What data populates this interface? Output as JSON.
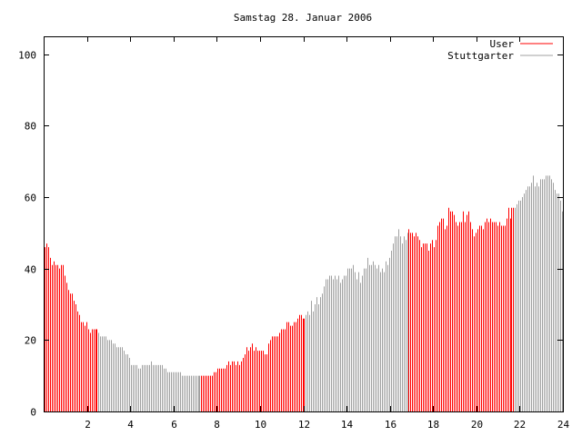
{
  "chart_data": {
    "type": "bar",
    "title": "Samstag 28. Januar 2006",
    "xlabel": "",
    "ylabel": "",
    "xlim": [
      0,
      24
    ],
    "ylim": [
      0,
      105
    ],
    "xticks": [
      2,
      4,
      6,
      8,
      10,
      12,
      14,
      16,
      18,
      20,
      22,
      24
    ],
    "yticks": [
      0,
      20,
      40,
      60,
      80,
      100
    ],
    "interval_minutes": 5,
    "legend_position": "top-right",
    "series": [
      {
        "name": "User",
        "color": "#ff0000"
      },
      {
        "name": "Stuttgarter",
        "color": "#a0a0a0"
      }
    ],
    "user_intervals_hours": [
      [
        0,
        2.5
      ],
      [
        7.17,
        12.08
      ],
      [
        16.83,
        21.75
      ]
    ],
    "values": [
      46,
      47,
      46,
      43,
      41,
      42,
      41,
      41,
      40,
      41,
      41,
      38,
      36,
      34,
      33,
      33,
      31,
      30,
      28,
      27,
      25,
      25,
      24,
      25,
      23,
      22,
      23,
      23,
      23,
      23,
      22,
      21,
      21,
      21,
      21,
      20,
      20,
      20,
      19,
      19,
      18,
      18,
      18,
      18,
      17,
      16,
      16,
      15,
      13,
      13,
      13,
      13,
      12,
      12,
      13,
      13,
      13,
      13,
      13,
      14,
      13,
      13,
      13,
      13,
      13,
      13,
      12,
      12,
      11,
      11,
      11,
      11,
      11,
      11,
      11,
      11,
      10,
      10,
      10,
      10,
      10,
      10,
      10,
      10,
      10,
      10,
      10,
      10,
      10,
      10,
      10,
      10,
      10,
      10,
      11,
      11,
      12,
      12,
      12,
      12,
      12,
      13,
      14,
      13,
      14,
      14,
      13,
      14,
      13,
      14,
      15,
      16,
      18,
      17,
      18,
      19,
      17,
      18,
      17,
      17,
      17,
      17,
      16,
      16,
      19,
      20,
      21,
      21,
      21,
      21,
      22,
      23,
      23,
      23,
      25,
      25,
      24,
      24,
      25,
      25,
      26,
      27,
      27,
      26,
      26,
      27,
      28,
      27,
      31,
      28,
      30,
      32,
      30,
      32,
      33,
      35,
      37,
      37,
      38,
      38,
      37,
      38,
      37,
      38,
      36,
      37,
      38,
      38,
      40,
      40,
      40,
      41,
      39,
      37,
      39,
      36,
      38,
      40,
      40,
      43,
      41,
      41,
      42,
      41,
      40,
      41,
      39,
      40,
      39,
      42,
      41,
      43,
      45,
      47,
      49,
      49,
      51,
      49,
      47,
      49,
      48,
      50,
      51,
      50,
      50,
      49,
      50,
      49,
      48,
      46,
      47,
      47,
      47,
      45,
      47,
      48,
      46,
      48,
      52,
      53,
      54,
      54,
      51,
      52,
      57,
      56,
      56,
      55,
      53,
      52,
      53,
      53,
      56,
      53,
      55,
      56,
      53,
      51,
      49,
      50,
      51,
      52,
      52,
      51,
      53,
      54,
      53,
      54,
      53,
      53,
      53,
      52,
      53,
      52,
      52,
      52,
      54,
      57,
      54,
      57,
      57,
      57,
      58,
      59,
      59,
      60,
      61,
      62,
      63,
      63,
      64,
      66,
      63,
      64,
      63,
      65,
      65,
      65,
      66,
      66,
      66,
      65,
      64,
      62,
      61,
      61,
      59,
      56
    ]
  }
}
